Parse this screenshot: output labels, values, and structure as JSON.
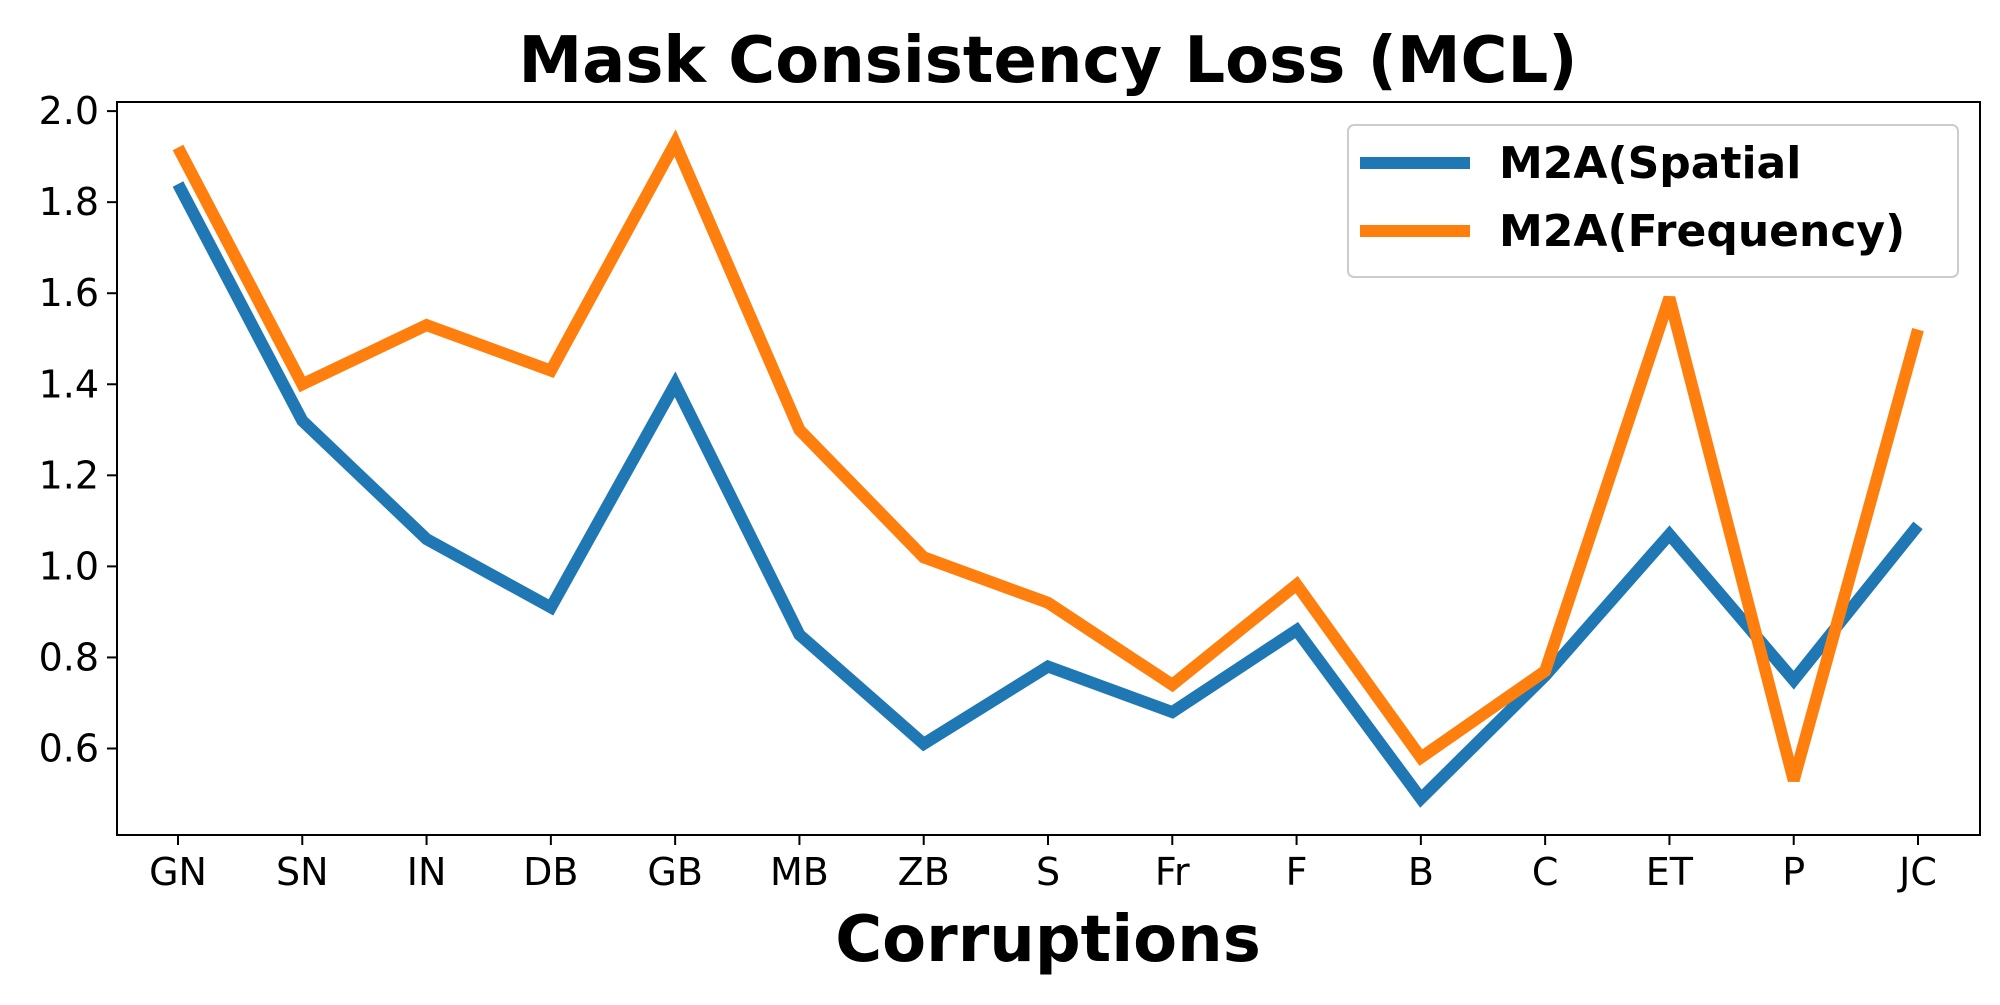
{
  "chart_data": {
    "type": "line",
    "title": "Mask Consistency Loss (MCL)",
    "xlabel": "Corruptions",
    "ylabel": "",
    "categories": [
      "GN",
      "SN",
      "IN",
      "DB",
      "GB",
      "MB",
      "ZB",
      "S",
      "Fr",
      "F",
      "B",
      "C",
      "ET",
      "P",
      "JC"
    ],
    "ylim": [
      0.41,
      2.02
    ],
    "yticks": [
      "0.6",
      "0.8",
      "1.0",
      "1.2",
      "1.4",
      "1.6",
      "1.8",
      "2.0"
    ],
    "grid": false,
    "legend_position": "top-right",
    "series": [
      {
        "name": "M2A(Spatial",
        "color": "#1f77b4",
        "values": [
          1.84,
          1.32,
          1.06,
          0.91,
          1.4,
          0.85,
          0.61,
          0.78,
          0.68,
          0.86,
          0.49,
          0.76,
          1.07,
          0.75,
          1.09
        ]
      },
      {
        "name": "M2A(Frequency)",
        "color": "#ff7f0e",
        "values": [
          1.92,
          1.4,
          1.53,
          1.43,
          1.93,
          1.3,
          1.02,
          0.92,
          0.74,
          0.96,
          0.58,
          0.77,
          1.59,
          0.53,
          1.52
        ]
      }
    ]
  }
}
